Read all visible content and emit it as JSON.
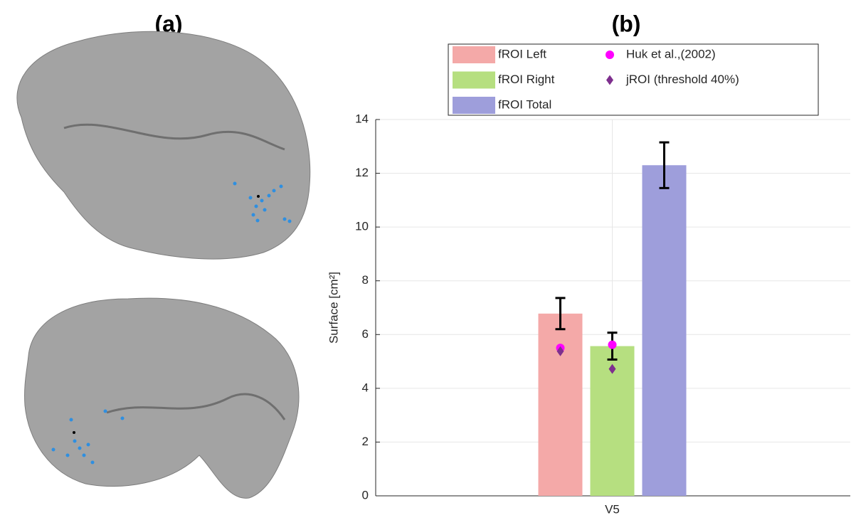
{
  "panel_labels": [
    "(a)",
    "(b)"
  ],
  "chart_data": {
    "type": "bar",
    "categories": [
      "V5"
    ],
    "ylabel": "Surface [cm²]",
    "ylim": [
      0,
      14
    ],
    "yticks": [
      0,
      2,
      4,
      6,
      8,
      10,
      12,
      14
    ],
    "grid": true,
    "series": [
      {
        "name": "fROI Left",
        "color": "#f4a9a8",
        "values": [
          6.78
        ],
        "errors": [
          0.58
        ]
      },
      {
        "name": "fROI Right",
        "color": "#b6df80",
        "values": [
          5.57
        ],
        "errors": [
          0.5
        ]
      },
      {
        "name": "fROI Total",
        "color": "#9e9edb",
        "values": [
          12.3
        ],
        "errors": [
          0.85
        ]
      }
    ],
    "points": [
      {
        "name": "Huk et al.,(2002)",
        "color": "#ff00ff",
        "marker": "circle",
        "values": [
          5.5,
          5.62,
          null
        ]
      },
      {
        "name": "jROI (threshold 40%)",
        "color": "#7e2f8e",
        "marker": "diamond",
        "values": [
          5.38,
          4.72,
          null
        ]
      }
    ]
  }
}
